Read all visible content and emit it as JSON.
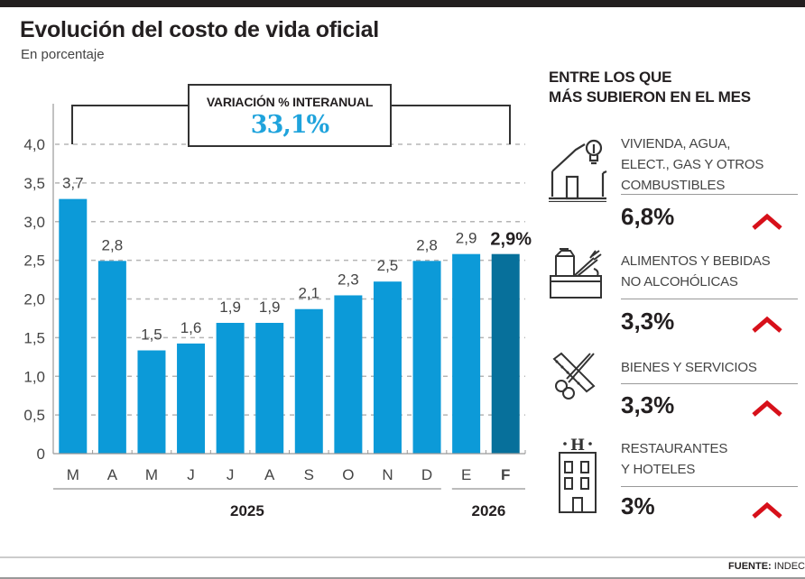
{
  "header": {
    "title": "Evolución del costo de vida oficial",
    "subtitle": "En porcentaje"
  },
  "callout": {
    "label": "VARIACIÓN % INTERANUAL",
    "value": "33,1%",
    "value_color": "#1fa3dc"
  },
  "chart_data": {
    "type": "bar",
    "title": "Evolución del costo de vida oficial",
    "subtitle": "En porcentaje",
    "xlabel": "",
    "ylabel": "",
    "categories": [
      "M",
      "A",
      "M",
      "J",
      "J",
      "A",
      "S",
      "O",
      "N",
      "D",
      "E",
      "F"
    ],
    "values": [
      3.7,
      2.8,
      1.5,
      1.6,
      1.9,
      1.9,
      2.1,
      2.3,
      2.5,
      2.8,
      2.9,
      2.9
    ],
    "value_labels": [
      "3,7",
      "2,8",
      "1,5",
      "1,6",
      "1,9",
      "1,9",
      "2,1",
      "2,3",
      "2,5",
      "2,8",
      "2,9",
      "2,9%"
    ],
    "highlight_index": 11,
    "ylim": [
      0,
      4.0
    ],
    "yticks": [
      0,
      0.5,
      1.0,
      1.5,
      2.0,
      2.5,
      3.0,
      3.5,
      4.0
    ],
    "ytick_labels": [
      "0",
      "0,5",
      "1,0",
      "1,5",
      "2,0",
      "2,5",
      "3,0",
      "3,5",
      "4,0"
    ],
    "year_groups": [
      {
        "label": "2025",
        "from": 0,
        "to": 9
      },
      {
        "label": "2026",
        "from": 10,
        "to": 11
      }
    ],
    "grid": true,
    "bar_color": "#0c9ad8",
    "highlight_color": "#07709b"
  },
  "right_panel": {
    "title_line1": "ENTRE LOS QUE",
    "title_line2": "MÁS SUBIERON EN EL MES",
    "arrow_color": "#d7101a",
    "categories": [
      {
        "icon": "house-lightbulb-icon",
        "lines": [
          "VIVIENDA, AGUA,",
          "ELECT., GAS Y OTROS",
          "COMBUSTIBLES"
        ],
        "value": "6,8%"
      },
      {
        "icon": "groceries-icon",
        "lines": [
          "ALIMENTOS Y BEBIDAS",
          "NO ALCOHÓLICAS"
        ],
        "value": "3,3%"
      },
      {
        "icon": "scissors-comb-icon",
        "lines": [
          "BIENES Y SERVICIOS"
        ],
        "value": "3,3%"
      },
      {
        "icon": "hotel-icon",
        "lines": [
          "RESTAURANTES",
          "Y HOTELES"
        ],
        "value": "3%"
      }
    ]
  },
  "footer": {
    "source_label": "FUENTE:",
    "source_value": "INDEC"
  }
}
